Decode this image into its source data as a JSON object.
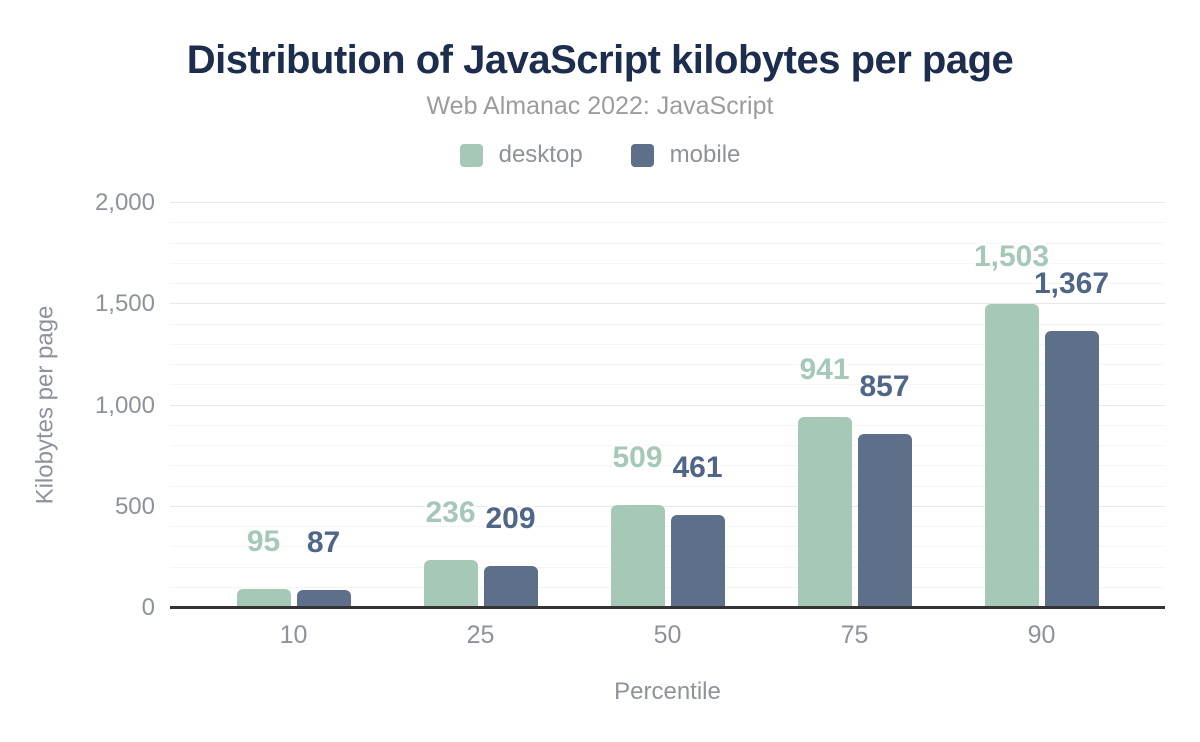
{
  "header": {
    "title": "Distribution of JavaScript kilobytes per page",
    "subtitle": "Web Almanac 2022: JavaScript"
  },
  "legend": {
    "items": [
      {
        "label": "desktop",
        "color": "#a6c9b7"
      },
      {
        "label": "mobile",
        "color": "#5e7089"
      }
    ]
  },
  "colors": {
    "title": "#1d2d4e",
    "subtitle": "#9c9c9c",
    "axis_text": "#8d929b",
    "axis_line": "#343434",
    "gridline_major": "#e7e7e7",
    "gridline_minor": "#f5f5f5"
  },
  "chart_data": {
    "type": "bar",
    "title": "Distribution of JavaScript kilobytes per page",
    "subtitle": "Web Almanac 2022: JavaScript",
    "categories": [
      "10",
      "25",
      "50",
      "75",
      "90"
    ],
    "series": [
      {
        "name": "desktop",
        "bar_color": "#a6c9b7",
        "label_color": "#a6c9b7",
        "values": [
          95,
          236,
          509,
          941,
          1503
        ],
        "labels": [
          "95",
          "236",
          "509",
          "941",
          "1,503"
        ]
      },
      {
        "name": "mobile",
        "bar_color": "#5e7089",
        "label_color": "#506689",
        "values": [
          87,
          209,
          461,
          857,
          1367
        ],
        "labels": [
          "87",
          "209",
          "461",
          "857",
          "1,367"
        ]
      }
    ],
    "xlabel": "Percentile",
    "ylabel": "Kilobytes per page",
    "ylim": [
      0,
      2000
    ],
    "yticks": [
      0,
      500,
      1000,
      1500,
      2000
    ],
    "ytick_labels": [
      "0",
      "500",
      "1,000",
      "1,500",
      "2,000"
    ],
    "minor_grid_step": 100,
    "grid": "horizontal",
    "legend_position": "top"
  }
}
